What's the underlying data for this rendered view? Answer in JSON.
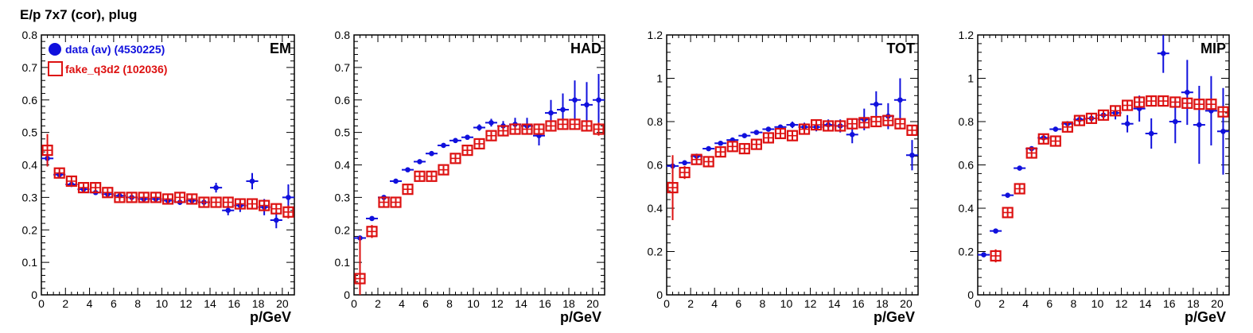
{
  "figure_title": "E/p 7x7 (cor), plug",
  "colors": {
    "data": "#1010dd",
    "fake": "#dd1111"
  },
  "legend": {
    "data_label": "data (av) (4530225)",
    "fake_label": "fake_q3d2 (102036)"
  },
  "chart_data": [
    {
      "type": "scatter",
      "title": "EM",
      "xlabel": "p/GeV",
      "xlim": [
        0,
        21
      ],
      "ylim": [
        0,
        0.8
      ],
      "xticks": [
        0,
        2,
        4,
        6,
        8,
        10,
        12,
        14,
        16,
        18,
        20
      ],
      "yticks": [
        0,
        0.1,
        0.2,
        0.3,
        0.4,
        0.5,
        0.6,
        0.7,
        0.8
      ],
      "ytick_labels": [
        "0",
        "0.1",
        "0.2",
        "0.3",
        "0.4",
        "0.5",
        "0.6",
        "0.7",
        "0.8"
      ],
      "series": [
        {
          "name": "data (av) (4530225)",
          "x": [
            0.5,
            1.5,
            2.5,
            3.5,
            4.5,
            5.5,
            6.5,
            7.5,
            8.5,
            9.5,
            10.5,
            11.5,
            12.5,
            13.5,
            14.5,
            15.5,
            16.5,
            17.5,
            18.5,
            19.5,
            20.5
          ],
          "y": [
            0.42,
            0.37,
            0.34,
            0.325,
            0.315,
            0.31,
            0.305,
            0.3,
            0.295,
            0.295,
            0.29,
            0.285,
            0.29,
            0.285,
            0.33,
            0.26,
            0.275,
            0.35,
            0.27,
            0.23,
            0.3
          ],
          "yerr": [
            0.02,
            0.008,
            0.005,
            0.005,
            0.005,
            0.005,
            0.005,
            0.005,
            0.006,
            0.006,
            0.007,
            0.008,
            0.01,
            0.01,
            0.015,
            0.015,
            0.02,
            0.025,
            0.025,
            0.025,
            0.04
          ]
        },
        {
          "name": "fake_q3d2 (102036)",
          "x": [
            0.5,
            1.5,
            2.5,
            3.5,
            4.5,
            5.5,
            6.5,
            7.5,
            8.5,
            9.5,
            10.5,
            11.5,
            12.5,
            13.5,
            14.5,
            15.5,
            16.5,
            17.5,
            18.5,
            19.5,
            20.5
          ],
          "y": [
            0.445,
            0.375,
            0.35,
            0.33,
            0.33,
            0.315,
            0.3,
            0.3,
            0.3,
            0.3,
            0.295,
            0.3,
            0.295,
            0.285,
            0.285,
            0.285,
            0.28,
            0.28,
            0.275,
            0.265,
            0.255
          ],
          "yerr": [
            0.05,
            0.015,
            0.012,
            0.012,
            0.012,
            0.012,
            0.012,
            0.012,
            0.012,
            0.012,
            0.012,
            0.012,
            0.012,
            0.012,
            0.012,
            0.012,
            0.012,
            0.012,
            0.015,
            0.015,
            0.02
          ]
        }
      ]
    },
    {
      "type": "scatter",
      "title": "HAD",
      "xlabel": "p/GeV",
      "xlim": [
        0,
        21
      ],
      "ylim": [
        0,
        0.8
      ],
      "xticks": [
        0,
        2,
        4,
        6,
        8,
        10,
        12,
        14,
        16,
        18,
        20
      ],
      "yticks": [
        0,
        0.1,
        0.2,
        0.3,
        0.4,
        0.5,
        0.6,
        0.7,
        0.8
      ],
      "ytick_labels": [
        "0",
        "0.1",
        "0.2",
        "0.3",
        "0.4",
        "0.5",
        "0.6",
        "0.7",
        "0.8"
      ],
      "series": [
        {
          "name": "data (av) (4530225)",
          "x": [
            0.5,
            1.5,
            2.5,
            3.5,
            4.5,
            5.5,
            6.5,
            7.5,
            8.5,
            9.5,
            10.5,
            11.5,
            12.5,
            13.5,
            14.5,
            15.5,
            16.5,
            17.5,
            18.5,
            19.5,
            20.5
          ],
          "y": [
            0.175,
            0.235,
            0.3,
            0.35,
            0.385,
            0.41,
            0.435,
            0.46,
            0.475,
            0.485,
            0.515,
            0.53,
            0.52,
            0.525,
            0.52,
            0.49,
            0.56,
            0.57,
            0.6,
            0.585,
            0.6
          ],
          "yerr": [
            0.005,
            0.004,
            0.004,
            0.004,
            0.004,
            0.005,
            0.005,
            0.006,
            0.007,
            0.008,
            0.01,
            0.012,
            0.015,
            0.02,
            0.025,
            0.03,
            0.04,
            0.05,
            0.06,
            0.07,
            0.08
          ]
        },
        {
          "name": "fake_q3d2 (102036)",
          "x": [
            0.5,
            1.5,
            2.5,
            3.5,
            4.5,
            5.5,
            6.5,
            7.5,
            8.5,
            9.5,
            10.5,
            11.5,
            12.5,
            13.5,
            14.5,
            15.5,
            16.5,
            17.5,
            18.5,
            19.5,
            20.5
          ],
          "y": [
            0.05,
            0.195,
            0.285,
            0.285,
            0.325,
            0.365,
            0.365,
            0.385,
            0.42,
            0.445,
            0.465,
            0.49,
            0.505,
            0.51,
            0.51,
            0.51,
            0.52,
            0.525,
            0.525,
            0.52,
            0.51
          ],
          "yerr": [
            0.13,
            0.02,
            0.015,
            0.012,
            0.012,
            0.012,
            0.012,
            0.012,
            0.012,
            0.012,
            0.012,
            0.012,
            0.012,
            0.012,
            0.012,
            0.012,
            0.012,
            0.012,
            0.015,
            0.015,
            0.02
          ]
        }
      ]
    },
    {
      "type": "scatter",
      "title": "TOT",
      "xlabel": "p/GeV",
      "xlim": [
        0,
        21
      ],
      "ylim": [
        0,
        1.2
      ],
      "xticks": [
        0,
        2,
        4,
        6,
        8,
        10,
        12,
        14,
        16,
        18,
        20
      ],
      "yticks": [
        0,
        0.2,
        0.4,
        0.6,
        0.8,
        1.0,
        1.2
      ],
      "ytick_labels": [
        "0",
        "0.2",
        "0.4",
        "0.6",
        "0.8",
        "1",
        "1.2"
      ],
      "series": [
        {
          "name": "data (av) (4530225)",
          "x": [
            0.5,
            1.5,
            2.5,
            3.5,
            4.5,
            5.5,
            6.5,
            7.5,
            8.5,
            9.5,
            10.5,
            11.5,
            12.5,
            13.5,
            14.5,
            15.5,
            16.5,
            17.5,
            18.5,
            19.5,
            20.5
          ],
          "y": [
            0.595,
            0.61,
            0.64,
            0.675,
            0.7,
            0.715,
            0.735,
            0.75,
            0.765,
            0.775,
            0.785,
            0.775,
            0.775,
            0.785,
            0.78,
            0.74,
            0.81,
            0.88,
            0.825,
            0.9,
            0.645
          ],
          "yerr": [
            0.03,
            0.01,
            0.008,
            0.008,
            0.008,
            0.008,
            0.008,
            0.008,
            0.01,
            0.01,
            0.015,
            0.02,
            0.02,
            0.025,
            0.03,
            0.04,
            0.05,
            0.06,
            0.06,
            0.1,
            0.07
          ]
        },
        {
          "name": "fake_q3d2 (102036)",
          "x": [
            0.5,
            1.5,
            2.5,
            3.5,
            4.5,
            5.5,
            6.5,
            7.5,
            8.5,
            9.5,
            10.5,
            11.5,
            12.5,
            13.5,
            14.5,
            15.5,
            16.5,
            17.5,
            18.5,
            19.5,
            20.5
          ],
          "y": [
            0.495,
            0.565,
            0.625,
            0.615,
            0.66,
            0.685,
            0.675,
            0.695,
            0.725,
            0.745,
            0.735,
            0.765,
            0.785,
            0.78,
            0.78,
            0.79,
            0.795,
            0.8,
            0.805,
            0.79,
            0.76
          ],
          "yerr": [
            0.15,
            0.03,
            0.02,
            0.02,
            0.02,
            0.02,
            0.02,
            0.02,
            0.02,
            0.02,
            0.02,
            0.02,
            0.02,
            0.02,
            0.02,
            0.02,
            0.02,
            0.02,
            0.02,
            0.02,
            0.025
          ]
        }
      ]
    },
    {
      "type": "scatter",
      "title": "MIP",
      "xlabel": "p/GeV",
      "xlim": [
        0,
        21
      ],
      "ylim": [
        0,
        1.2
      ],
      "xticks": [
        0,
        2,
        4,
        6,
        8,
        10,
        12,
        14,
        16,
        18,
        20
      ],
      "yticks": [
        0,
        0.2,
        0.4,
        0.6,
        0.8,
        1.0,
        1.2
      ],
      "ytick_labels": [
        "0",
        "0.2",
        "0.4",
        "0.6",
        "0.8",
        "1",
        "1.2"
      ],
      "series": [
        {
          "name": "data (av) (4530225)",
          "x": [
            0.5,
            1.5,
            2.5,
            3.5,
            4.5,
            5.5,
            6.5,
            7.5,
            8.5,
            9.5,
            10.5,
            11.5,
            12.5,
            13.5,
            14.5,
            15.5,
            16.5,
            17.5,
            18.5,
            19.5,
            20.5
          ],
          "y": [
            0.185,
            0.295,
            0.46,
            0.585,
            0.675,
            0.725,
            0.765,
            0.79,
            0.81,
            0.815,
            0.83,
            0.84,
            0.79,
            0.86,
            0.745,
            1.115,
            0.8,
            0.935,
            0.785,
            0.85,
            0.755
          ],
          "yerr": [
            0.005,
            0.004,
            0.005,
            0.005,
            0.006,
            0.008,
            0.01,
            0.012,
            0.015,
            0.02,
            0.025,
            0.03,
            0.04,
            0.06,
            0.07,
            0.09,
            0.1,
            0.15,
            0.18,
            0.16,
            0.2
          ]
        },
        {
          "name": "fake_q3d2 (102036)",
          "x": [
            0.5,
            1.5,
            2.5,
            3.5,
            4.5,
            5.5,
            6.5,
            7.5,
            8.5,
            9.5,
            10.5,
            11.5,
            12.5,
            13.5,
            14.5,
            15.5,
            16.5,
            17.5,
            18.5,
            19.5,
            20.5
          ],
          "y": [
            null,
            0.18,
            0.38,
            0.49,
            0.655,
            0.72,
            0.71,
            0.775,
            0.805,
            0.815,
            0.83,
            0.85,
            0.875,
            0.89,
            0.895,
            0.895,
            0.89,
            0.885,
            0.88,
            0.88,
            0.845
          ],
          "yerr": [
            0,
            0.03,
            0.02,
            0.02,
            0.02,
            0.02,
            0.02,
            0.02,
            0.02,
            0.02,
            0.02,
            0.02,
            0.02,
            0.02,
            0.02,
            0.02,
            0.02,
            0.02,
            0.02,
            0.02,
            0.02
          ]
        }
      ]
    }
  ]
}
